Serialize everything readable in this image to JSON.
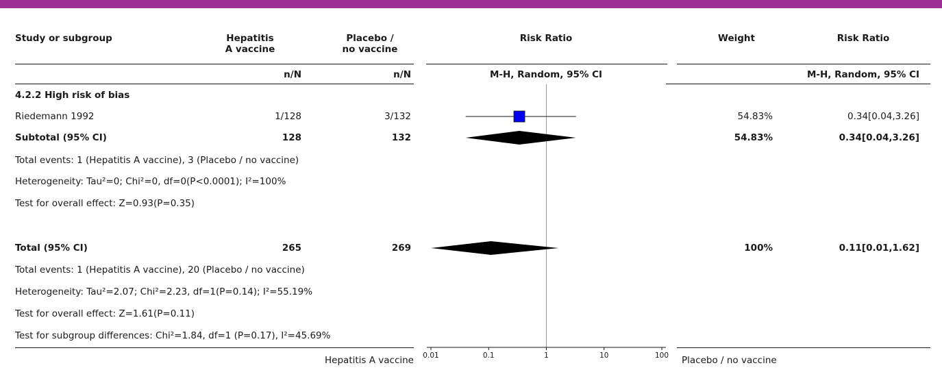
{
  "header": {
    "study": "Study or subgroup",
    "exp_line1": "Hepatitis",
    "exp_line2": "A vaccine",
    "ctl_line1": "Placebo /",
    "ctl_line2": "no vaccine",
    "rr": "Risk Ratio",
    "weight": "Weight",
    "rr2": "Risk Ratio",
    "exp_nN": "n/N",
    "ctl_nN": "n/N",
    "method": "M-H, Random, 95% CI",
    "method2": "M-H, Random, 95% CI"
  },
  "subgroup": {
    "title": "4.2.2 High risk of bias",
    "study": {
      "name": "Riedemann 1992",
      "exp": "1/128",
      "ctl": "3/132",
      "weight": "54.83%",
      "ci": "0.34[0.04,3.26]"
    },
    "subtotal": {
      "label": "Subtotal (95% CI)",
      "exp": "128",
      "ctl": "132",
      "weight": "54.83%",
      "ci": "0.34[0.04,3.26]"
    },
    "events": "Total events: 1 (Hepatitis A vaccine), 3 (Placebo / no vaccine)",
    "heterogeneity": "Heterogeneity: Tau²=0; Chi²=0, df=0(P<0.0001); I²=100%",
    "overall": "Test for overall effect: Z=0.93(P=0.35)"
  },
  "total": {
    "label": "Total (95% CI)",
    "exp": "265",
    "ctl": "269",
    "weight": "100%",
    "ci": "0.11[0.01,1.62]",
    "events": "Total events: 1 (Hepatitis A vaccine), 20 (Placebo / no vaccine)",
    "heterogeneity": "Heterogeneity: Tau²=2.07; Chi²=2.23, df=1(P=0.14); I²=55.19%",
    "overall": "Test for overall effect: Z=1.61(P=0.11)",
    "subgroup_diff": "Test for subgroup differences: Chi²=1.84, df=1 (P=0.17), I²=45.69%"
  },
  "footer": {
    "favours_left": "Hepatitis A vaccine",
    "favours_right": "Placebo / no vaccine"
  },
  "colors": {
    "accent_bar": "#9b2f95",
    "study_marker": "#0000ee"
  },
  "chart_data": {
    "type": "forest",
    "scale": "log",
    "xlim": [
      0.01,
      100
    ],
    "ticks": [
      {
        "value": 0.01,
        "label": "0.01"
      },
      {
        "value": 0.1,
        "label": "0.1"
      },
      {
        "value": 1,
        "label": "1"
      },
      {
        "value": 10,
        "label": "10"
      },
      {
        "value": 100,
        "label": "100"
      }
    ],
    "null_line": 1,
    "studies": [
      {
        "name": "Riedemann 1992",
        "rr": 0.34,
        "lower": 0.04,
        "upper": 3.26,
        "weight": 54.83
      }
    ],
    "diamonds": [
      {
        "name": "Subtotal (95% CI)",
        "rr": 0.34,
        "lower": 0.04,
        "upper": 3.26
      },
      {
        "name": "Total (95% CI)",
        "rr": 0.11,
        "lower": 0.01,
        "upper": 1.62
      }
    ]
  }
}
